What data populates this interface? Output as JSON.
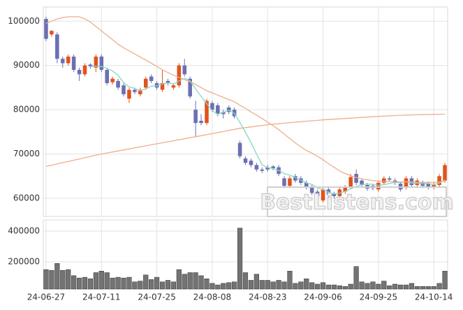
{
  "chart_data": {
    "type": "candlestick",
    "categories": [
      "24-06-27",
      null,
      null,
      null,
      null,
      null,
      null,
      null,
      null,
      null,
      "24-07-11",
      null,
      null,
      null,
      null,
      null,
      null,
      null,
      null,
      null,
      "24-07-25",
      null,
      null,
      null,
      null,
      null,
      null,
      null,
      null,
      null,
      "24-08-08",
      null,
      null,
      null,
      null,
      null,
      null,
      null,
      null,
      null,
      "24-08-23",
      null,
      null,
      null,
      null,
      null,
      null,
      null,
      null,
      null,
      "24-09-06",
      null,
      null,
      null,
      null,
      null,
      null,
      null,
      null,
      null,
      "24-09-25",
      null,
      null,
      null,
      null,
      null,
      null,
      null,
      null,
      null,
      "24-10-14",
      null,
      null
    ],
    "open": [
      100500,
      97000,
      97000,
      91500,
      90500,
      92000,
      89000,
      88000,
      90200,
      89500,
      92000,
      89000,
      86200,
      86500,
      85500,
      82500,
      84500,
      83500,
      85000,
      87500,
      86000,
      84500,
      86500,
      85000,
      85500,
      90000,
      87000,
      80000,
      77500,
      77000,
      81500,
      81000,
      79500,
      80500,
      80000,
      72500,
      69000,
      68500,
      67500,
      66500,
      67000,
      67200,
      67000,
      64500,
      62800,
      65000,
      64500,
      63500,
      62500,
      61500,
      59500,
      62000,
      61000,
      60500,
      61500,
      62500,
      65500,
      64000,
      63000,
      62800,
      62000,
      63500,
      64500,
      64000,
      63300,
      62500,
      64500,
      63000,
      63500,
      63300,
      62500,
      63000,
      64000
    ],
    "high": [
      101000,
      98000,
      97500,
      92000,
      92500,
      92500,
      89500,
      90500,
      90500,
      92500,
      92500,
      89500,
      87500,
      87000,
      86000,
      85000,
      85000,
      85000,
      87500,
      88000,
      86500,
      89000,
      87000,
      86000,
      90500,
      91500,
      87500,
      82000,
      79000,
      82500,
      82000,
      81500,
      80000,
      81000,
      80500,
      73000,
      69500,
      69000,
      68000,
      67000,
      67500,
      67500,
      67500,
      65000,
      65000,
      65500,
      65000,
      64000,
      63000,
      62000,
      62500,
      62500,
      61500,
      62500,
      63000,
      65500,
      66500,
      64500,
      63500,
      63300,
      64000,
      65000,
      65000,
      64500,
      63800,
      65000,
      65000,
      64500,
      64000,
      63800,
      63500,
      65500,
      68000
    ],
    "low": [
      95500,
      96500,
      90500,
      89500,
      90000,
      88500,
      86500,
      87500,
      89300,
      88500,
      88500,
      85500,
      85700,
      84500,
      83000,
      81500,
      83500,
      83000,
      84500,
      86000,
      84500,
      84000,
      85500,
      84500,
      85000,
      87500,
      82500,
      74000,
      76500,
      76500,
      79500,
      78500,
      78000,
      79000,
      78000,
      69000,
      67500,
      67000,
      66000,
      65700,
      66000,
      66300,
      65000,
      62300,
      62300,
      63500,
      63000,
      62000,
      60700,
      60000,
      59000,
      60300,
      60000,
      60000,
      61000,
      62000,
      63000,
      62500,
      61700,
      61800,
      61500,
      63000,
      63700,
      63000,
      61500,
      62000,
      62500,
      62500,
      62300,
      62000,
      62000,
      62500,
      63500
    ],
    "close": [
      96000,
      97800,
      91500,
      90500,
      92000,
      89000,
      88000,
      90000,
      89800,
      92000,
      89000,
      86000,
      87000,
      85000,
      83500,
      84500,
      84000,
      84500,
      87000,
      86500,
      85000,
      86000,
      86000,
      85500,
      90000,
      88000,
      83000,
      77000,
      77000,
      82000,
      80000,
      79000,
      79000,
      79500,
      78500,
      69500,
      68000,
      67500,
      66500,
      66200,
      66500,
      66800,
      65500,
      62800,
      64500,
      64000,
      63500,
      62500,
      61200,
      60500,
      62000,
      60800,
      60500,
      62000,
      62500,
      64800,
      63500,
      63000,
      62200,
      62300,
      63500,
      64500,
      64200,
      63500,
      62000,
      64500,
      63000,
      64000,
      62800,
      62500,
      63000,
      65000,
      67500
    ],
    "up_color": "#e2521d",
    "down_color": "#6b6fb2",
    "ylim": [
      55900,
      103200
    ],
    "yticks": [
      60000,
      70000,
      80000,
      90000,
      100000
    ],
    "grid": true,
    "lines": [
      {
        "color": "#85d8c3",
        "values": [
          null,
          null,
          null,
          null,
          null,
          null,
          null,
          null,
          89760,
          89760,
          89760,
          89360,
          88760,
          87800,
          86100,
          85200,
          84800,
          84300,
          84700,
          85300,
          85400,
          85800,
          86100,
          85800,
          86500,
          87100,
          86500,
          84700,
          83000,
          81400,
          79800,
          79000,
          79400,
          79900,
          79200,
          77100,
          74900,
          72600,
          70000,
          67540,
          66940,
          66700,
          66300,
          65560,
          65220,
          64720,
          64060,
          63460,
          63140,
          62340,
          61940,
          61400,
          61000,
          61160,
          61560,
          62120,
          62660,
          63160,
          63200,
          63160,
          62900,
          63100,
          63340,
          63600,
          63540,
          63740,
          63440,
          63400,
          63260,
          63360,
          63060,
          63460,
          64160
        ]
      },
      {
        "color": "#eeae8c",
        "values": [
          99500,
          100000,
          100500,
          100800,
          101000,
          101000,
          101000,
          100500,
          99800,
          98800,
          97800,
          96800,
          95800,
          94800,
          94000,
          93300,
          92600,
          91900,
          91200,
          90500,
          89800,
          89000,
          88400,
          87800,
          87300,
          86800,
          86300,
          85700,
          85000,
          84300,
          83800,
          83300,
          82800,
          82300,
          81800,
          81000,
          80300,
          79500,
          78800,
          78000,
          77200,
          76400,
          75500,
          74500,
          73500,
          72500,
          71600,
          70800,
          70200,
          69500,
          68700,
          67800,
          67000,
          66200,
          65600,
          65100,
          64700,
          64400,
          64200,
          64000,
          63900,
          63800,
          63800,
          63700,
          63700,
          63700,
          63700,
          63600,
          63600,
          63600,
          63600,
          63700,
          63900
        ]
      },
      {
        "color": "#eeae8c",
        "values": [
          67200,
          67480,
          67760,
          68040,
          68320,
          68600,
          68880,
          69160,
          69440,
          69720,
          70000,
          70230,
          70460,
          70690,
          70920,
          71150,
          71380,
          71610,
          71840,
          72070,
          72300,
          72530,
          72760,
          72990,
          73220,
          73450,
          73680,
          73910,
          74140,
          74370,
          74600,
          74840,
          75080,
          75320,
          75560,
          75800,
          75960,
          76120,
          76280,
          76440,
          76600,
          76720,
          76840,
          76960,
          77080,
          77200,
          77300,
          77400,
          77500,
          77600,
          77700,
          77780,
          77860,
          77940,
          78020,
          78100,
          78180,
          78260,
          78340,
          78420,
          78500,
          78560,
          78620,
          78680,
          78740,
          78800,
          78830,
          78860,
          78890,
          78920,
          78950,
          78980,
          79000
        ]
      }
    ],
    "volume": {
      "type": "bar",
      "color": "#737373",
      "ylim": [
        23000,
        473000
      ],
      "yticks": [
        200000,
        400000
      ],
      "values": [
        150000,
        145000,
        190000,
        145000,
        150000,
        110000,
        95000,
        100000,
        90000,
        130000,
        140000,
        130000,
        95000,
        100000,
        95000,
        100000,
        70000,
        75000,
        115000,
        85000,
        100000,
        70000,
        80000,
        70000,
        150000,
        120000,
        130000,
        130000,
        110000,
        90000,
        60000,
        50000,
        60000,
        65000,
        70000,
        420000,
        130000,
        80000,
        120000,
        80000,
        80000,
        70000,
        80000,
        70000,
        140000,
        60000,
        70000,
        90000,
        65000,
        55000,
        65000,
        50000,
        50000,
        45000,
        40000,
        55000,
        170000,
        70000,
        60000,
        70000,
        55000,
        75000,
        45000,
        55000,
        50000,
        50000,
        60000,
        40000,
        40000,
        40000,
        40000,
        60000,
        140000
      ]
    },
    "watermark": "BestListens.com"
  }
}
